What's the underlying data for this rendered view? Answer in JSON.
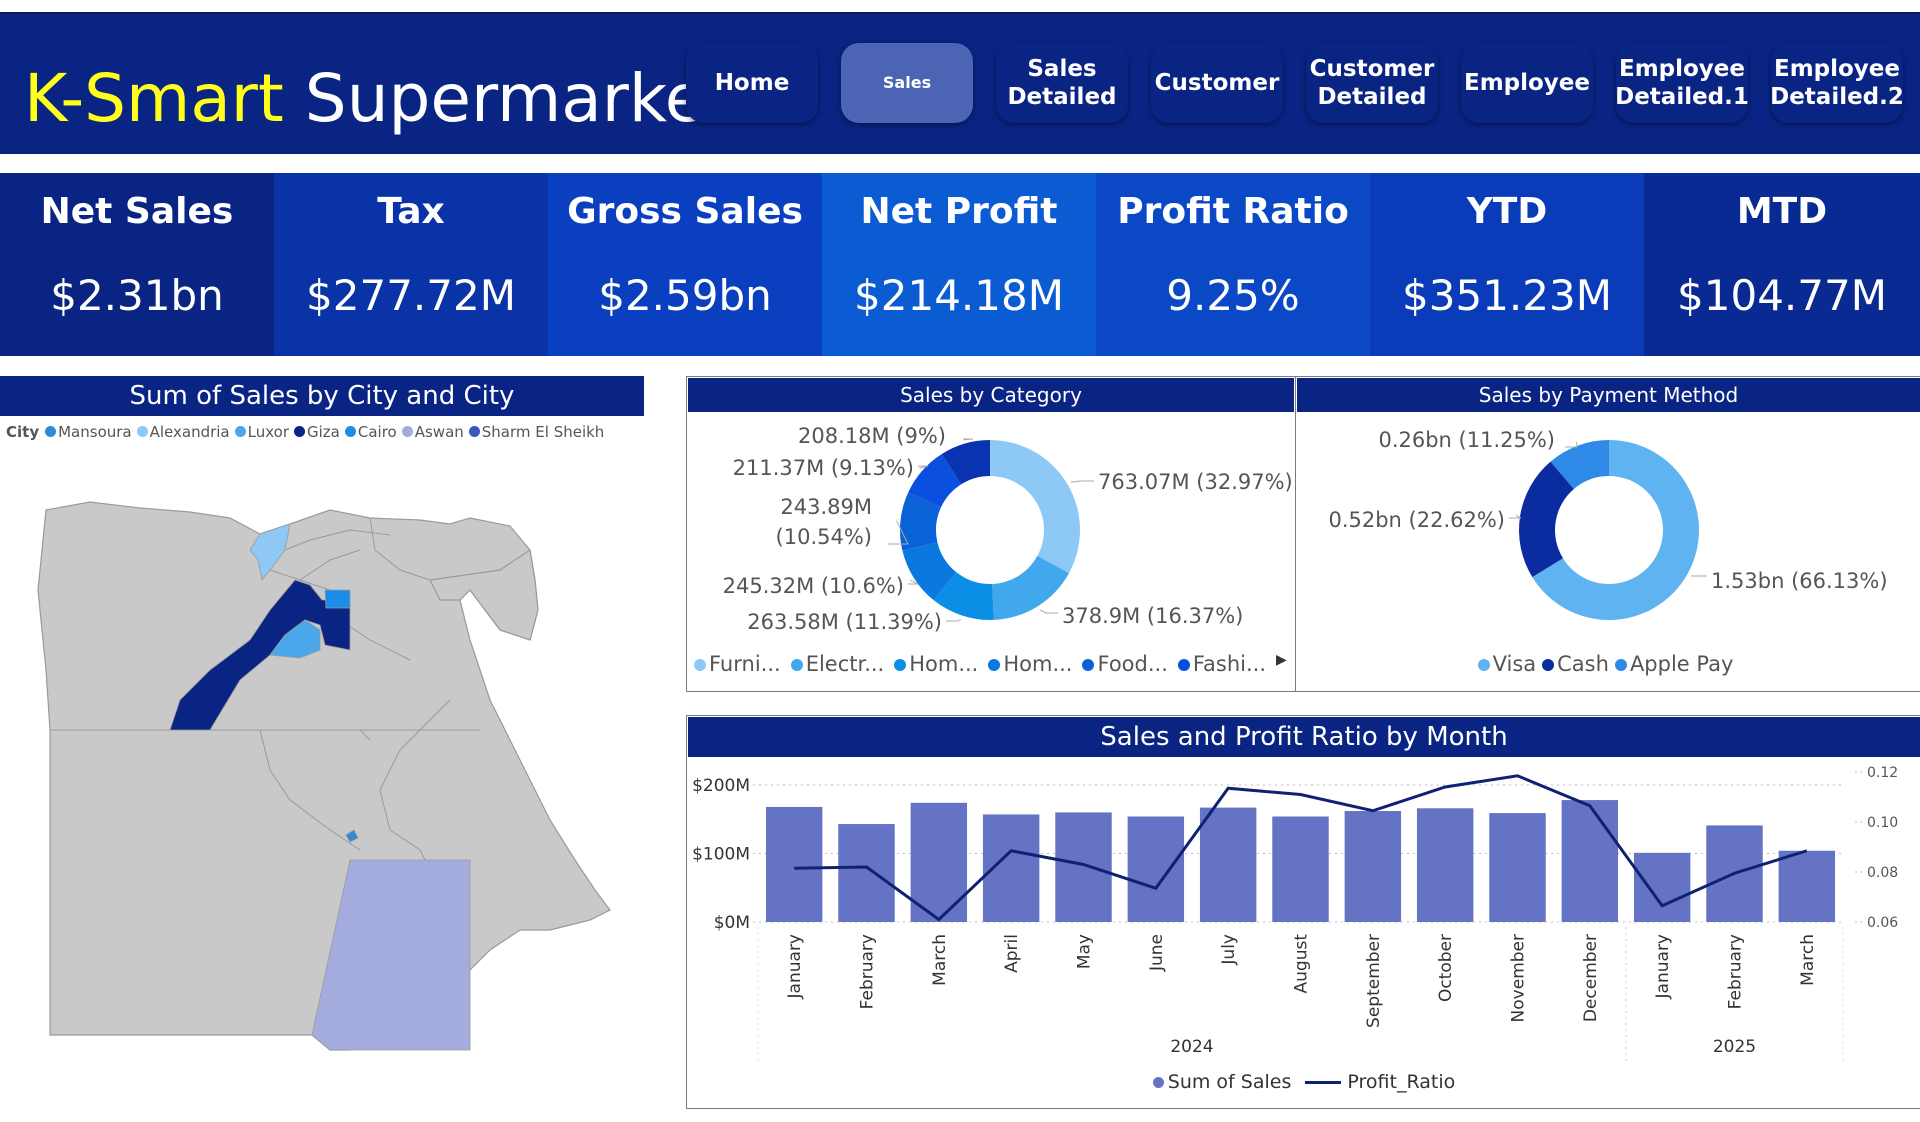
{
  "header": {
    "brand_part1": "K-Smart",
    "brand_part2": "Supermarket",
    "nav": [
      "Home",
      "Sales",
      "Sales\nDetailed",
      "Customer",
      "Customer\nDetailed",
      "Employee",
      "Employee\nDetailed.1",
      "Employee\nDetailed.2"
    ],
    "active_nav": "Sales"
  },
  "kpis": [
    {
      "label": "Net Sales",
      "value": "$2.31bn",
      "color": "#0a2484"
    },
    {
      "label": "Tax",
      "value": "$277.72M",
      "color": "#0a33a8"
    },
    {
      "label": "Gross Sales",
      "value": "$2.59bn",
      "color": "#0a3fbf"
    },
    {
      "label": "Net Profit",
      "value": "$214.18M",
      "color": "#0b5bd3"
    },
    {
      "label": "Profit Ratio",
      "value": "9.25%",
      "color": "#0a48c6"
    },
    {
      "label": "YTD",
      "value": "$351.23M",
      "color": "#0a3bb8"
    },
    {
      "label": "MTD",
      "value": "$104.77M",
      "color": "#0a2a93"
    }
  ],
  "map": {
    "title": "Sum of Sales by City and City",
    "legend_label": "City",
    "legend": [
      {
        "name": "Mansoura",
        "color": "#2e8bd8"
      },
      {
        "name": "Alexandria",
        "color": "#8ec8f5"
      },
      {
        "name": "Luxor",
        "color": "#4aa7ec"
      },
      {
        "name": "Giza",
        "color": "#0a2484"
      },
      {
        "name": "Cairo",
        "color": "#1a8de8"
      },
      {
        "name": "Aswan",
        "color": "#a3acdc"
      },
      {
        "name": "Sharm El Sheikh",
        "color": "#3a55c0"
      }
    ]
  },
  "category_chart": {
    "title": "Sales by Category",
    "legend": [
      "Furni...",
      "Electr...",
      "Hom...",
      "Hom...",
      "Food...",
      "Fashi..."
    ],
    "legend_more_icon": "chevron-right-icon"
  },
  "payment_chart": {
    "title": "Sales by Payment Method",
    "legend": [
      "Visa",
      "Cash",
      "Apple Pay"
    ]
  },
  "month_chart": {
    "title": "Sales and Profit Ratio by Month",
    "legend_bar": "Sum of Sales",
    "legend_line": "Profit_Ratio",
    "year_labels": [
      "2024",
      "2025"
    ]
  },
  "chart_data": [
    {
      "type": "pie",
      "title": "Sales by Category",
      "slices": [
        {
          "name": "Furni...",
          "value": 763.07,
          "label": "763.07M (32.97%)",
          "color": "#8ec8f5"
        },
        {
          "name": "Electr...",
          "value": 378.9,
          "label": "378.9M (16.37%)",
          "color": "#41a8ee"
        },
        {
          "name": "Hom...",
          "value": 263.58,
          "label": "263.58M (11.39%)",
          "color": "#0a8ee6"
        },
        {
          "name": "Hom...",
          "value": 245.32,
          "label": "245.32M (10.6%)",
          "color": "#0a78de"
        },
        {
          "name": "Food...",
          "value": 243.89,
          "label": "243.89M\n(10.54%)",
          "color": "#0a62d8"
        },
        {
          "name": "Fashi...",
          "value": 211.37,
          "label": "211.37M (9.13%)",
          "color": "#0a4fe0"
        },
        {
          "name": "",
          "value": 208.18,
          "label": "208.18M (9%)",
          "color": "#0a33b0"
        }
      ]
    },
    {
      "type": "pie",
      "title": "Sales by Payment Method",
      "slices": [
        {
          "name": "Visa",
          "value": 1.53,
          "label": "1.53bn (66.13%)",
          "color": "#5eb3f0"
        },
        {
          "name": "Cash",
          "value": 0.52,
          "label": "0.52bn (22.62%)",
          "color": "#0a2ca0"
        },
        {
          "name": "Apple Pay",
          "value": 0.26,
          "label": "0.26bn (11.25%)",
          "color": "#2e8ae6"
        }
      ]
    },
    {
      "type": "bar",
      "title": "Sales and Profit Ratio by Month",
      "categories": [
        "January",
        "February",
        "March",
        "April",
        "May",
        "June",
        "July",
        "August",
        "September",
        "October",
        "November",
        "December",
        "January",
        "February",
        "March"
      ],
      "groups": [
        {
          "label": "2024",
          "count": 12
        },
        {
          "label": "2025",
          "count": 3
        }
      ],
      "series": [
        {
          "name": "Sum of Sales",
          "values": [
            168,
            143,
            174,
            157,
            160,
            154,
            167,
            154,
            162,
            166,
            159,
            178,
            101,
            141,
            104
          ],
          "color": "#6473c4",
          "axis": "left"
        },
        {
          "name": "Profit_Ratio",
          "values": [
            0.0815,
            0.082,
            0.061,
            0.0885,
            0.083,
            0.0735,
            0.1135,
            0.111,
            0.1045,
            0.114,
            0.1185,
            0.1065,
            0.0665,
            0.0795,
            0.0885
          ],
          "color": "#0f2272",
          "axis": "right",
          "type": "line"
        }
      ],
      "y_left": {
        "ticks": [
          "$0M",
          "$100M",
          "$200M"
        ],
        "range": [
          0,
          200
        ]
      },
      "y_right": {
        "ticks": [
          "0.06",
          "0.08",
          "0.10",
          "0.12"
        ],
        "range": [
          0.06,
          0.12
        ]
      },
      "grid": true,
      "legend_position": "bottom"
    }
  ]
}
